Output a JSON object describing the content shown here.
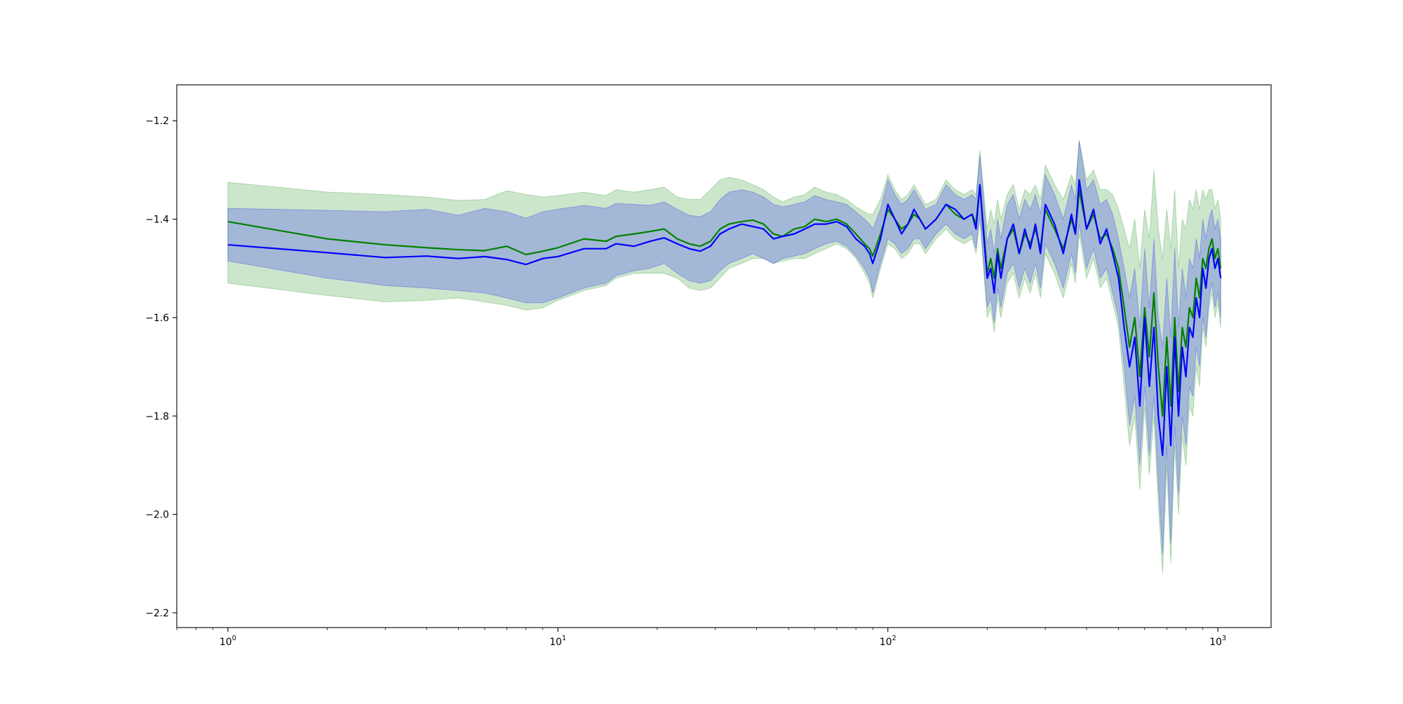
{
  "chart_data": {
    "type": "line",
    "title": "",
    "xlabel": "",
    "ylabel": "",
    "x_scale": "log",
    "xlim": [
      0.7,
      1450
    ],
    "ylim": [
      -2.23,
      -1.127
    ],
    "grid": false,
    "legend": "none",
    "x_ticks": [
      {
        "base": "10",
        "exp": "0",
        "value": 1
      },
      {
        "base": "10",
        "exp": "1",
        "value": 10
      },
      {
        "base": "10",
        "exp": "2",
        "value": 100
      },
      {
        "base": "10",
        "exp": "3",
        "value": 1000
      }
    ],
    "y_ticks": [
      {
        "label": "−1.2",
        "value": -1.2
      },
      {
        "label": "−1.4",
        "value": -1.4
      },
      {
        "label": "−1.6",
        "value": -1.6
      },
      {
        "label": "−1.8",
        "value": -1.8
      },
      {
        "label": "−2.0",
        "value": -2.0
      },
      {
        "label": "−2.2",
        "value": -2.2
      }
    ],
    "series": [
      {
        "color": "#008000",
        "band_color": "#008000",
        "x": [
          1,
          2,
          3,
          4,
          5,
          6,
          7,
          8,
          9,
          10,
          12,
          14,
          15,
          17,
          19,
          21,
          23,
          25,
          27,
          29,
          31,
          33,
          36,
          39,
          42,
          45,
          48,
          52,
          56,
          60,
          65,
          70,
          75,
          80,
          85,
          88,
          90,
          95,
          100,
          105,
          110,
          115,
          120,
          125,
          130,
          140,
          150,
          160,
          170,
          180,
          185,
          190,
          195,
          200,
          205,
          210,
          215,
          220,
          230,
          240,
          250,
          260,
          270,
          280,
          290,
          300,
          320,
          340,
          360,
          370,
          380,
          400,
          420,
          440,
          460,
          480,
          500,
          520,
          540,
          560,
          580,
          600,
          620,
          640,
          660,
          680,
          700,
          720,
          740,
          760,
          780,
          800,
          820,
          840,
          860,
          880,
          900,
          920,
          940,
          960,
          980,
          1000,
          1020
        ],
        "y": [
          -1.405,
          -1.44,
          -1.452,
          -1.458,
          -1.462,
          -1.464,
          -1.455,
          -1.472,
          -1.465,
          -1.458,
          -1.44,
          -1.445,
          -1.435,
          -1.43,
          -1.425,
          -1.42,
          -1.44,
          -1.45,
          -1.455,
          -1.445,
          -1.42,
          -1.41,
          -1.405,
          -1.402,
          -1.41,
          -1.43,
          -1.435,
          -1.42,
          -1.415,
          -1.4,
          -1.405,
          -1.4,
          -1.41,
          -1.43,
          -1.45,
          -1.46,
          -1.475,
          -1.43,
          -1.38,
          -1.4,
          -1.42,
          -1.41,
          -1.39,
          -1.4,
          -1.42,
          -1.4,
          -1.37,
          -1.39,
          -1.4,
          -1.39,
          -1.41,
          -1.33,
          -1.42,
          -1.51,
          -1.48,
          -1.52,
          -1.46,
          -1.5,
          -1.44,
          -1.42,
          -1.47,
          -1.43,
          -1.45,
          -1.42,
          -1.46,
          -1.38,
          -1.42,
          -1.46,
          -1.4,
          -1.43,
          -1.34,
          -1.42,
          -1.39,
          -1.44,
          -1.43,
          -1.46,
          -1.5,
          -1.58,
          -1.66,
          -1.6,
          -1.72,
          -1.58,
          -1.68,
          -1.55,
          -1.7,
          -1.8,
          -1.64,
          -1.78,
          -1.6,
          -1.75,
          -1.62,
          -1.66,
          -1.58,
          -1.6,
          -1.52,
          -1.56,
          -1.48,
          -1.5,
          -1.46,
          -1.44,
          -1.48,
          -1.46,
          -1.5
        ],
        "y_lower": [
          -1.53,
          -1.555,
          -1.568,
          -1.565,
          -1.56,
          -1.568,
          -1.575,
          -1.585,
          -1.58,
          -1.565,
          -1.545,
          -1.535,
          -1.52,
          -1.51,
          -1.51,
          -1.51,
          -1.52,
          -1.54,
          -1.545,
          -1.54,
          -1.52,
          -1.5,
          -1.49,
          -1.48,
          -1.48,
          -1.49,
          -1.485,
          -1.48,
          -1.48,
          -1.47,
          -1.46,
          -1.45,
          -1.46,
          -1.48,
          -1.51,
          -1.53,
          -1.56,
          -1.5,
          -1.45,
          -1.46,
          -1.48,
          -1.47,
          -1.45,
          -1.45,
          -1.47,
          -1.44,
          -1.42,
          -1.44,
          -1.45,
          -1.44,
          -1.47,
          -1.4,
          -1.5,
          -1.6,
          -1.58,
          -1.63,
          -1.56,
          -1.6,
          -1.53,
          -1.51,
          -1.56,
          -1.52,
          -1.55,
          -1.51,
          -1.56,
          -1.47,
          -1.51,
          -1.56,
          -1.49,
          -1.53,
          -1.43,
          -1.52,
          -1.48,
          -1.54,
          -1.52,
          -1.57,
          -1.62,
          -1.74,
          -1.86,
          -1.8,
          -1.95,
          -1.78,
          -1.92,
          -1.8,
          -1.98,
          -2.12,
          -1.9,
          -2.1,
          -1.86,
          -2.0,
          -1.84,
          -1.9,
          -1.78,
          -1.8,
          -1.7,
          -1.74,
          -1.62,
          -1.66,
          -1.58,
          -1.55,
          -1.6,
          -1.57,
          -1.62
        ],
        "y_upper": [
          -1.325,
          -1.345,
          -1.35,
          -1.355,
          -1.362,
          -1.36,
          -1.342,
          -1.35,
          -1.355,
          -1.352,
          -1.345,
          -1.352,
          -1.34,
          -1.345,
          -1.34,
          -1.335,
          -1.355,
          -1.36,
          -1.36,
          -1.34,
          -1.32,
          -1.315,
          -1.32,
          -1.33,
          -1.34,
          -1.355,
          -1.365,
          -1.355,
          -1.35,
          -1.335,
          -1.345,
          -1.35,
          -1.36,
          -1.375,
          -1.385,
          -1.39,
          -1.39,
          -1.36,
          -1.31,
          -1.34,
          -1.36,
          -1.35,
          -1.33,
          -1.35,
          -1.37,
          -1.36,
          -1.32,
          -1.34,
          -1.35,
          -1.34,
          -1.35,
          -1.26,
          -1.34,
          -1.42,
          -1.38,
          -1.41,
          -1.36,
          -1.4,
          -1.35,
          -1.33,
          -1.38,
          -1.34,
          -1.35,
          -1.33,
          -1.36,
          -1.29,
          -1.33,
          -1.36,
          -1.31,
          -1.33,
          -1.24,
          -1.32,
          -1.3,
          -1.34,
          -1.34,
          -1.35,
          -1.38,
          -1.42,
          -1.46,
          -1.4,
          -1.5,
          -1.38,
          -1.44,
          -1.3,
          -1.42,
          -1.48,
          -1.38,
          -1.46,
          -1.34,
          -1.5,
          -1.4,
          -1.42,
          -1.36,
          -1.38,
          -1.34,
          -1.38,
          -1.34,
          -1.36,
          -1.34,
          -1.34,
          -1.38,
          -1.36,
          -1.4
        ]
      },
      {
        "color": "#0000ff",
        "band_color": "#0000ff",
        "x": [
          1,
          2,
          3,
          4,
          5,
          6,
          7,
          8,
          9,
          10,
          12,
          14,
          15,
          17,
          19,
          21,
          23,
          25,
          27,
          29,
          31,
          33,
          36,
          39,
          42,
          45,
          48,
          52,
          56,
          60,
          65,
          70,
          75,
          80,
          85,
          88,
          90,
          95,
          100,
          105,
          110,
          115,
          120,
          125,
          130,
          140,
          150,
          160,
          170,
          180,
          185,
          190,
          195,
          200,
          205,
          210,
          215,
          220,
          230,
          240,
          250,
          260,
          270,
          280,
          290,
          300,
          320,
          340,
          360,
          370,
          380,
          400,
          420,
          440,
          460,
          480,
          500,
          520,
          540,
          560,
          580,
          600,
          620,
          640,
          660,
          680,
          700,
          720,
          740,
          760,
          780,
          800,
          820,
          840,
          860,
          880,
          900,
          920,
          940,
          960,
          980,
          1000,
          1020
        ],
        "y": [
          -1.452,
          -1.468,
          -1.478,
          -1.475,
          -1.48,
          -1.476,
          -1.482,
          -1.492,
          -1.48,
          -1.476,
          -1.46,
          -1.46,
          -1.45,
          -1.455,
          -1.445,
          -1.438,
          -1.45,
          -1.46,
          -1.465,
          -1.455,
          -1.43,
          -1.42,
          -1.41,
          -1.415,
          -1.42,
          -1.44,
          -1.435,
          -1.43,
          -1.42,
          -1.41,
          -1.41,
          -1.405,
          -1.415,
          -1.44,
          -1.455,
          -1.47,
          -1.49,
          -1.44,
          -1.37,
          -1.4,
          -1.43,
          -1.41,
          -1.38,
          -1.4,
          -1.42,
          -1.4,
          -1.37,
          -1.38,
          -1.4,
          -1.39,
          -1.42,
          -1.33,
          -1.43,
          -1.52,
          -1.5,
          -1.55,
          -1.47,
          -1.52,
          -1.44,
          -1.41,
          -1.47,
          -1.42,
          -1.46,
          -1.41,
          -1.47,
          -1.37,
          -1.41,
          -1.47,
          -1.39,
          -1.43,
          -1.32,
          -1.42,
          -1.38,
          -1.45,
          -1.42,
          -1.47,
          -1.52,
          -1.62,
          -1.7,
          -1.64,
          -1.78,
          -1.6,
          -1.74,
          -1.62,
          -1.8,
          -1.88,
          -1.7,
          -1.86,
          -1.64,
          -1.8,
          -1.66,
          -1.72,
          -1.62,
          -1.64,
          -1.56,
          -1.6,
          -1.5,
          -1.54,
          -1.48,
          -1.46,
          -1.5,
          -1.48,
          -1.52
        ],
        "y_lower": [
          -1.485,
          -1.52,
          -1.535,
          -1.54,
          -1.545,
          -1.55,
          -1.56,
          -1.57,
          -1.57,
          -1.56,
          -1.54,
          -1.53,
          -1.515,
          -1.505,
          -1.5,
          -1.49,
          -1.51,
          -1.525,
          -1.53,
          -1.525,
          -1.505,
          -1.49,
          -1.48,
          -1.47,
          -1.48,
          -1.49,
          -1.48,
          -1.475,
          -1.47,
          -1.46,
          -1.45,
          -1.445,
          -1.455,
          -1.475,
          -1.5,
          -1.52,
          -1.55,
          -1.49,
          -1.44,
          -1.45,
          -1.47,
          -1.46,
          -1.44,
          -1.44,
          -1.46,
          -1.43,
          -1.41,
          -1.43,
          -1.44,
          -1.43,
          -1.46,
          -1.39,
          -1.49,
          -1.58,
          -1.56,
          -1.61,
          -1.54,
          -1.58,
          -1.51,
          -1.49,
          -1.54,
          -1.5,
          -1.53,
          -1.49,
          -1.54,
          -1.45,
          -1.49,
          -1.54,
          -1.47,
          -1.51,
          -1.41,
          -1.5,
          -1.46,
          -1.52,
          -1.5,
          -1.55,
          -1.6,
          -1.7,
          -1.82,
          -1.76,
          -1.9,
          -1.74,
          -1.88,
          -1.76,
          -1.94,
          -2.08,
          -1.86,
          -2.06,
          -1.82,
          -1.96,
          -1.8,
          -1.86,
          -1.74,
          -1.76,
          -1.66,
          -1.7,
          -1.6,
          -1.64,
          -1.56,
          -1.53,
          -1.58,
          -1.55,
          -1.6
        ],
        "y_upper": [
          -1.378,
          -1.382,
          -1.385,
          -1.38,
          -1.392,
          -1.378,
          -1.385,
          -1.398,
          -1.385,
          -1.38,
          -1.372,
          -1.378,
          -1.368,
          -1.37,
          -1.372,
          -1.365,
          -1.38,
          -1.392,
          -1.395,
          -1.385,
          -1.36,
          -1.345,
          -1.34,
          -1.345,
          -1.355,
          -1.37,
          -1.375,
          -1.37,
          -1.365,
          -1.352,
          -1.36,
          -1.365,
          -1.37,
          -1.385,
          -1.4,
          -1.41,
          -1.42,
          -1.38,
          -1.32,
          -1.35,
          -1.37,
          -1.36,
          -1.34,
          -1.36,
          -1.38,
          -1.37,
          -1.33,
          -1.35,
          -1.36,
          -1.35,
          -1.36,
          -1.27,
          -1.36,
          -1.45,
          -1.42,
          -1.47,
          -1.4,
          -1.44,
          -1.37,
          -1.35,
          -1.4,
          -1.36,
          -1.38,
          -1.35,
          -1.39,
          -1.31,
          -1.35,
          -1.4,
          -1.33,
          -1.36,
          -1.24,
          -1.34,
          -1.32,
          -1.37,
          -1.36,
          -1.39,
          -1.44,
          -1.5,
          -1.56,
          -1.5,
          -1.62,
          -1.46,
          -1.58,
          -1.44,
          -1.6,
          -1.66,
          -1.52,
          -1.64,
          -1.46,
          -1.62,
          -1.5,
          -1.56,
          -1.48,
          -1.5,
          -1.44,
          -1.48,
          -1.4,
          -1.44,
          -1.4,
          -1.38,
          -1.42,
          -1.4,
          -1.44
        ]
      }
    ]
  }
}
